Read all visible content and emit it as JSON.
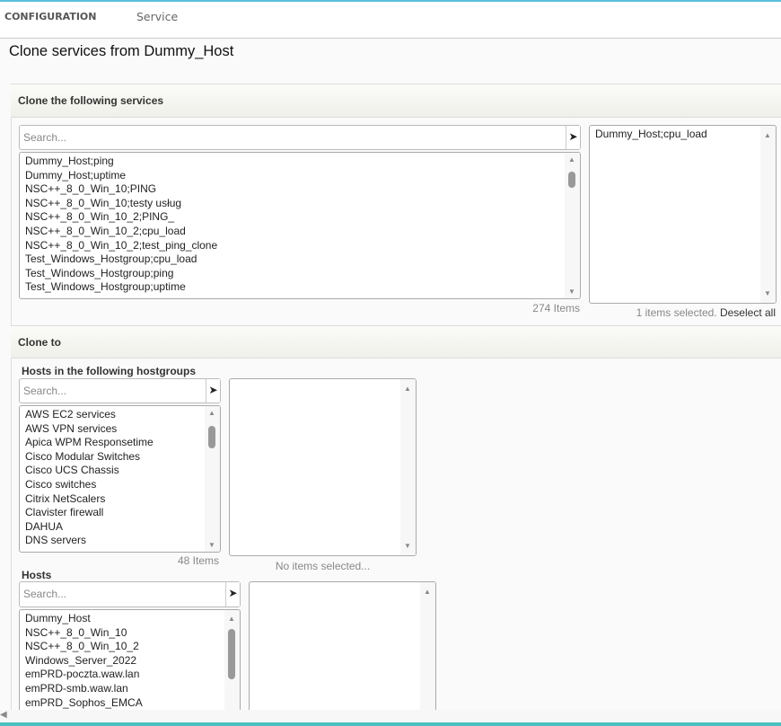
{
  "nav": {
    "section": "CONFIGURATION",
    "page": "Service"
  },
  "title": "Clone services from Dummy_Host",
  "services": {
    "header": "Clone the following services",
    "search_placeholder": "Search...",
    "items": [
      "Dummy_Host;ping",
      "Dummy_Host;uptime",
      "NSC++_8_0_Win_10;PING",
      "NSC++_8_0_Win_10;testy usług",
      "NSC++_8_0_Win_10_2;PING_",
      "NSC++_8_0_Win_10_2;cpu_load",
      "NSC++_8_0_Win_10_2;test_ping_clone",
      "Test_Windows_Hostgroup;cpu_load",
      "Test_Windows_Hostgroup;ping",
      "Test_Windows_Hostgroup;uptime"
    ],
    "count": "274 Items",
    "selected": [
      "Dummy_Host;cpu_load"
    ],
    "selected_status": "1 items selected.",
    "deselect_all": "Deselect all"
  },
  "clone_to": {
    "header": "Clone to",
    "hostgroups": {
      "label": "Hosts in the following hostgroups",
      "search_placeholder": "Search...",
      "items": [
        "AWS EC2 services",
        "AWS VPN services",
        "Apica WPM Responsetime",
        "Cisco Modular Switches",
        "Cisco UCS Chassis",
        "Cisco switches",
        "Citrix NetScalers",
        "Clavister firewall",
        "DAHUA",
        "DNS servers"
      ],
      "count": "48 Items",
      "selected_status": "No items selected..."
    },
    "hosts": {
      "label": "Hosts",
      "search_placeholder": "Search...",
      "items": [
        "Dummy_Host",
        "NSC++_8_0_Win_10",
        "NSC++_8_0_Win_10_2",
        "Windows_Server_2022",
        "emPRD-poczta.waw.lan",
        "emPRD-smb.waw.lan",
        "emPRD_Sophos_EMCA"
      ]
    }
  },
  "colors": {
    "accent": "#5bc0de",
    "footer": "#4bc0c0"
  }
}
